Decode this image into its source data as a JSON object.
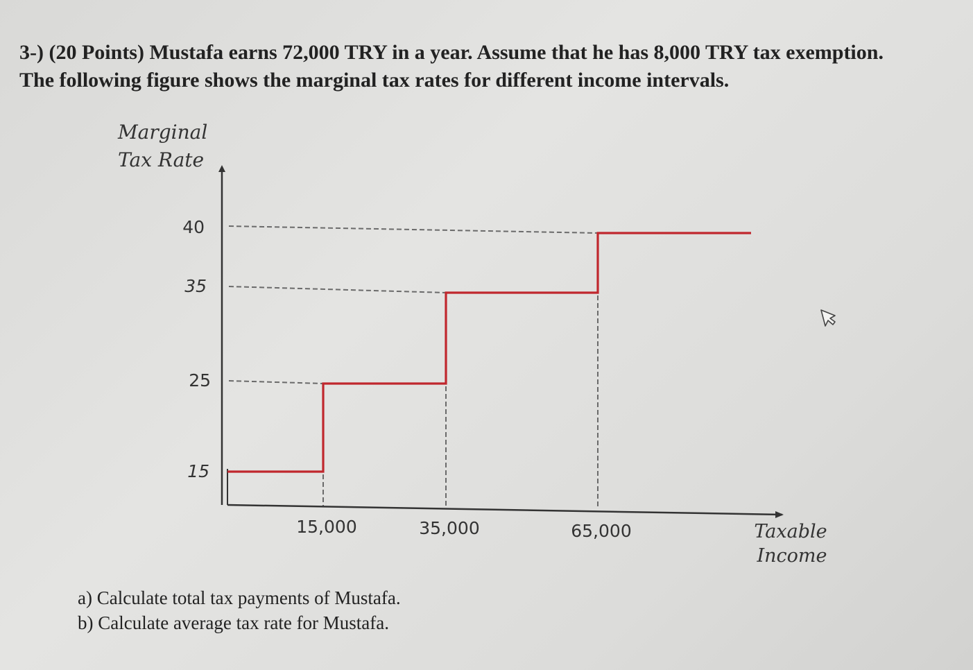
{
  "question": {
    "line1": "3-) (20 Points) Mustafa earns 72,000 TRY in a year. Assume that he has 8,000 TRY tax exemption.",
    "line2": "The following figure shows the marginal tax rates for different income intervals."
  },
  "subquestions": {
    "a": "a) Calculate total tax payments of Mustafa.",
    "b": "b) Calculate average tax rate for Mustafa."
  },
  "chart_data": {
    "type": "line",
    "step": true,
    "ylabel_lines": [
      "Marginal",
      "Tax Rate"
    ],
    "xlabel_lines": [
      "Taxable",
      "Income"
    ],
    "y_ticks": [
      "40",
      "35",
      "25",
      "15"
    ],
    "x_ticks": [
      "15,000",
      "35,000",
      "65,000"
    ],
    "segments": [
      {
        "x_start": 0,
        "x_end": 15000,
        "rate": 15
      },
      {
        "x_start": 15000,
        "x_end": 35000,
        "rate": 25
      },
      {
        "x_start": 35000,
        "x_end": 65000,
        "rate": 35
      },
      {
        "x_start": 65000,
        "x_end": null,
        "rate": 40
      }
    ],
    "line_color": "#c0272d",
    "axis_color": "#333333",
    "guide_color": "#6a6a6a",
    "grid": false
  }
}
